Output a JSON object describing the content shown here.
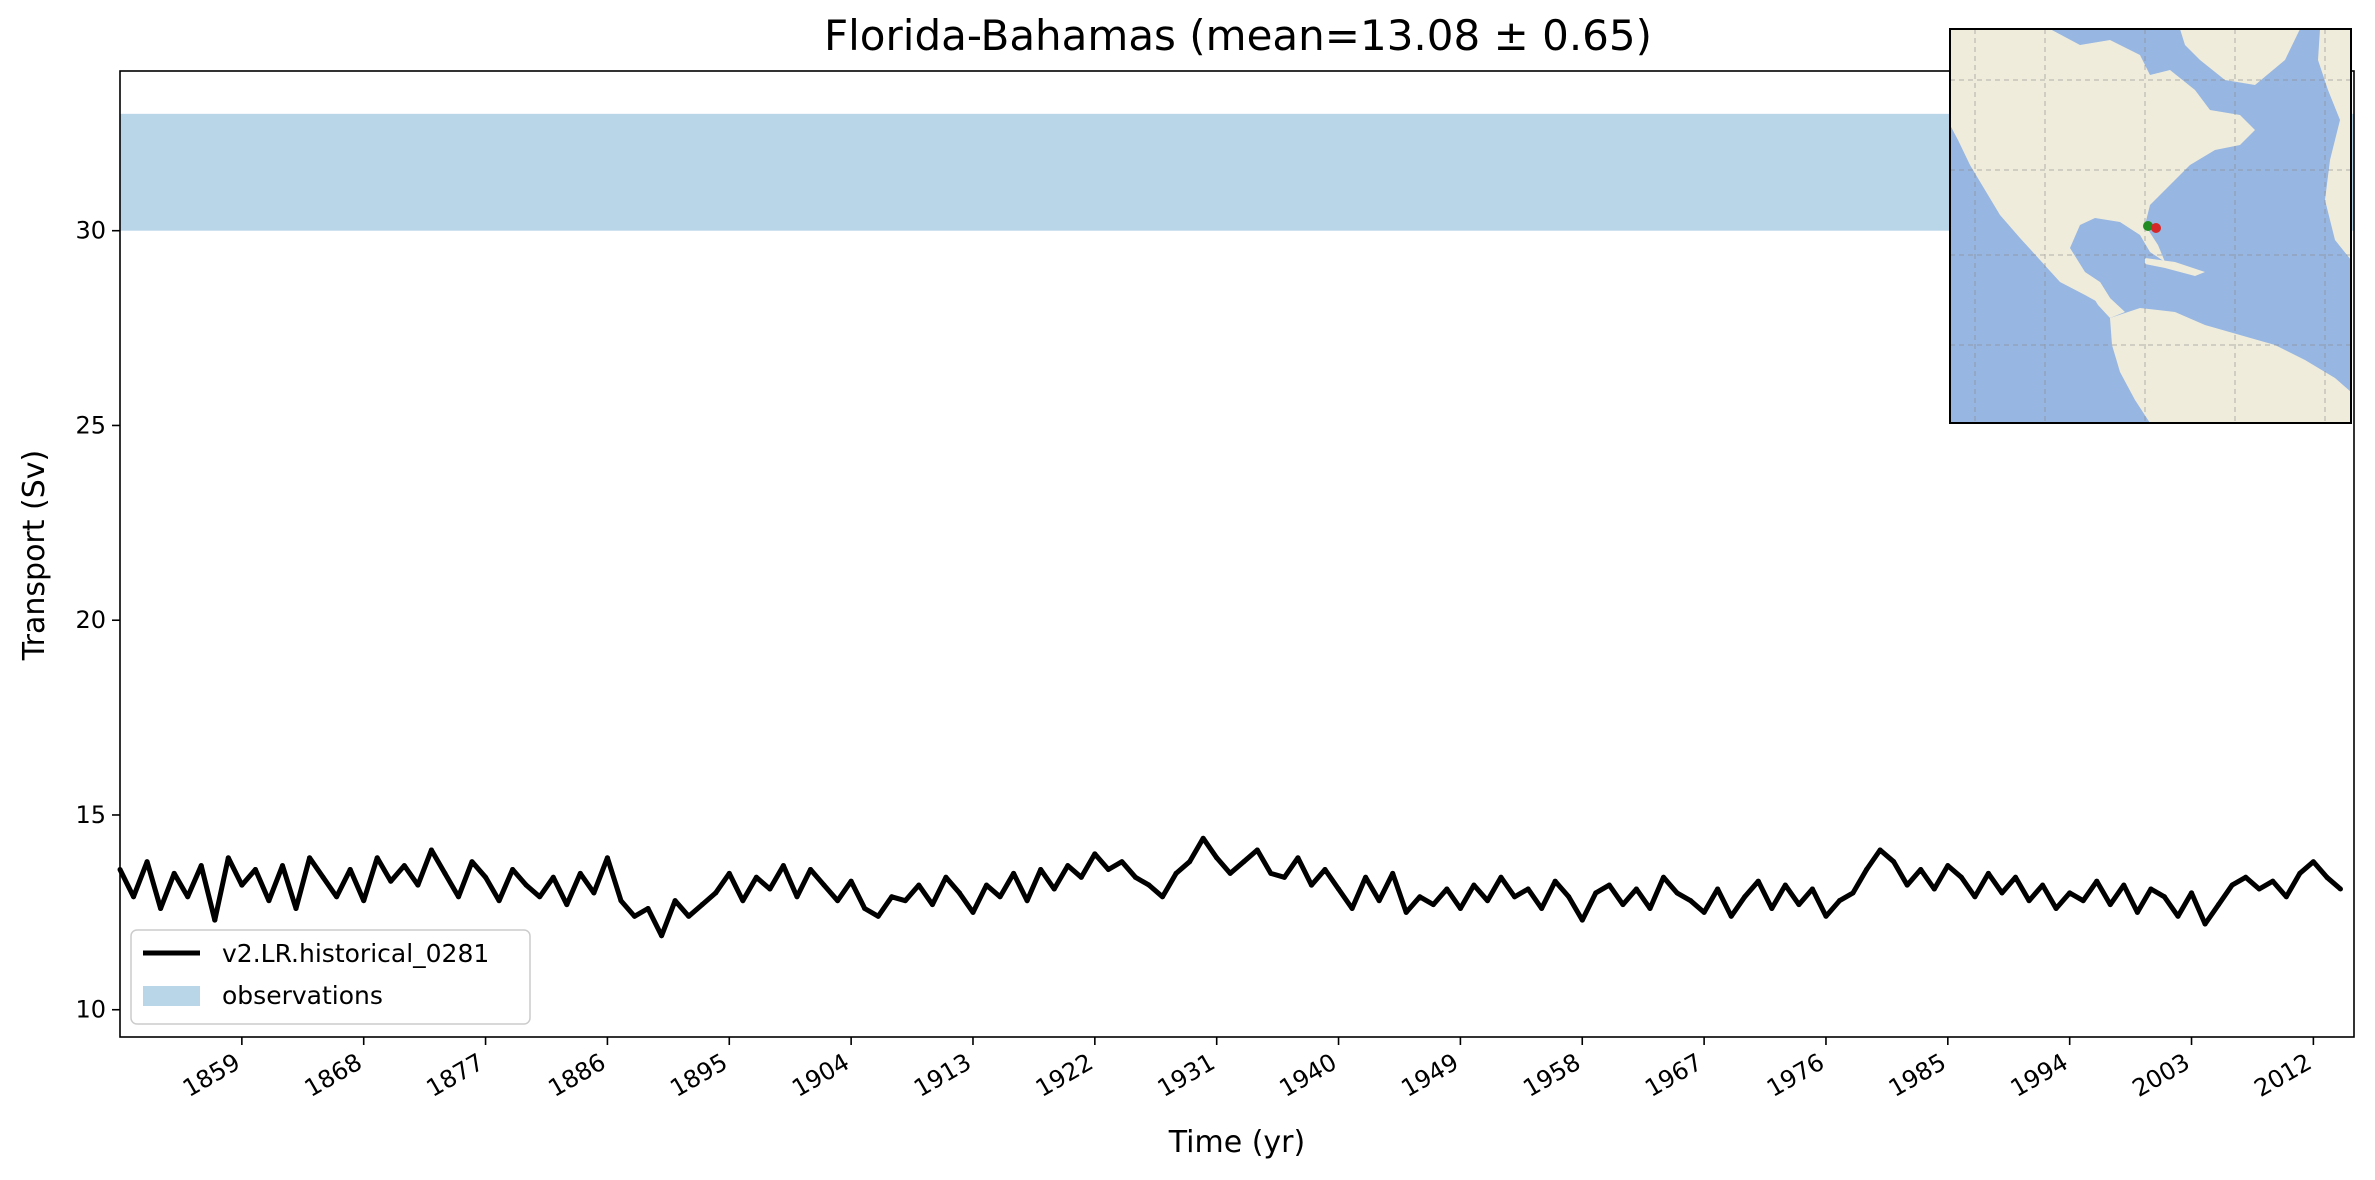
{
  "chart_data": {
    "type": "line",
    "title": "Florida-Bahamas (mean=13.08 ± 0.65)",
    "xlabel": "Time (yr)",
    "ylabel": "Transport (Sv)",
    "xlim": [
      1850,
      2015
    ],
    "ylim": [
      9.3,
      34.1
    ],
    "xticks": [
      1859,
      1868,
      1877,
      1886,
      1895,
      1904,
      1913,
      1922,
      1931,
      1940,
      1949,
      1958,
      1967,
      1976,
      1985,
      1994,
      2003,
      2012
    ],
    "yticks": [
      10,
      15,
      20,
      25,
      30
    ],
    "grid": false,
    "legend_position": "lower-left",
    "observations_band": {
      "name": "observations",
      "ymin": 30,
      "ymax": 33,
      "color": "#b9d5e8"
    },
    "series": [
      {
        "name": "v2.LR.historical_0281",
        "color": "#000000",
        "x": [
          1850,
          1851,
          1852,
          1853,
          1854,
          1855,
          1856,
          1857,
          1858,
          1859,
          1860,
          1861,
          1862,
          1863,
          1864,
          1865,
          1866,
          1867,
          1868,
          1869,
          1870,
          1871,
          1872,
          1873,
          1874,
          1875,
          1876,
          1877,
          1878,
          1879,
          1880,
          1881,
          1882,
          1883,
          1884,
          1885,
          1886,
          1887,
          1888,
          1889,
          1890,
          1891,
          1892,
          1893,
          1894,
          1895,
          1896,
          1897,
          1898,
          1899,
          1900,
          1901,
          1902,
          1903,
          1904,
          1905,
          1906,
          1907,
          1908,
          1909,
          1910,
          1911,
          1912,
          1913,
          1914,
          1915,
          1916,
          1917,
          1918,
          1919,
          1920,
          1921,
          1922,
          1923,
          1924,
          1925,
          1926,
          1927,
          1928,
          1929,
          1930,
          1931,
          1932,
          1933,
          1934,
          1935,
          1936,
          1937,
          1938,
          1939,
          1940,
          1941,
          1942,
          1943,
          1944,
          1945,
          1946,
          1947,
          1948,
          1949,
          1950,
          1951,
          1952,
          1953,
          1954,
          1955,
          1956,
          1957,
          1958,
          1959,
          1960,
          1961,
          1962,
          1963,
          1964,
          1965,
          1966,
          1967,
          1968,
          1969,
          1970,
          1971,
          1972,
          1973,
          1974,
          1975,
          1976,
          1977,
          1978,
          1979,
          1980,
          1981,
          1982,
          1983,
          1984,
          1985,
          1986,
          1987,
          1988,
          1989,
          1990,
          1991,
          1992,
          1993,
          1994,
          1995,
          1996,
          1997,
          1998,
          1999,
          2000,
          2001,
          2002,
          2003,
          2004,
          2005,
          2006,
          2007,
          2008,
          2009,
          2010,
          2011,
          2012,
          2013,
          2014
        ],
        "y": [
          13.6,
          12.9,
          13.8,
          12.6,
          13.5,
          12.9,
          13.7,
          12.3,
          13.9,
          13.2,
          13.6,
          12.8,
          13.7,
          12.6,
          13.9,
          13.4,
          12.9,
          13.6,
          12.8,
          13.9,
          13.3,
          13.7,
          13.2,
          14.1,
          13.5,
          12.9,
          13.8,
          13.4,
          12.8,
          13.6,
          13.2,
          12.9,
          13.4,
          12.7,
          13.5,
          13.0,
          13.9,
          12.8,
          12.4,
          12.6,
          11.9,
          12.8,
          12.4,
          12.7,
          13.0,
          13.5,
          12.8,
          13.4,
          13.1,
          13.7,
          12.9,
          13.6,
          13.2,
          12.8,
          13.3,
          12.6,
          12.4,
          12.9,
          12.8,
          13.2,
          12.7,
          13.4,
          13.0,
          12.5,
          13.2,
          12.9,
          13.5,
          12.8,
          13.6,
          13.1,
          13.7,
          13.4,
          14.0,
          13.6,
          13.8,
          13.4,
          13.2,
          12.9,
          13.5,
          13.8,
          14.4,
          13.9,
          13.5,
          13.8,
          14.1,
          13.5,
          13.4,
          13.9,
          13.2,
          13.6,
          13.1,
          12.6,
          13.4,
          12.8,
          13.5,
          12.5,
          12.9,
          12.7,
          13.1,
          12.6,
          13.2,
          12.8,
          13.4,
          12.9,
          13.1,
          12.6,
          13.3,
          12.9,
          12.3,
          13.0,
          13.2,
          12.7,
          13.1,
          12.6,
          13.4,
          13.0,
          12.8,
          12.5,
          13.1,
          12.4,
          12.9,
          13.3,
          12.6,
          13.2,
          12.7,
          13.1,
          12.4,
          12.8,
          13.0,
          13.6,
          14.1,
          13.8,
          13.2,
          13.6,
          13.1,
          13.7,
          13.4,
          12.9,
          13.5,
          13.0,
          13.4,
          12.8,
          13.2,
          12.6,
          13.0,
          12.8,
          13.3,
          12.7,
          13.2,
          12.5,
          13.1,
          12.9,
          12.4,
          13.0,
          12.2,
          12.7,
          13.2,
          13.4,
          13.1,
          13.3,
          12.9,
          13.5,
          13.8,
          13.4,
          13.1
        ]
      }
    ],
    "inset_map": {
      "description_icon": "world-map-icon",
      "land_color": "#efecdc",
      "ocean_color": "#97b6e1",
      "markers": [
        {
          "name": "green-marker-icon",
          "color": "#228b22"
        },
        {
          "name": "red-marker-icon",
          "color": "#d62728"
        }
      ]
    }
  }
}
